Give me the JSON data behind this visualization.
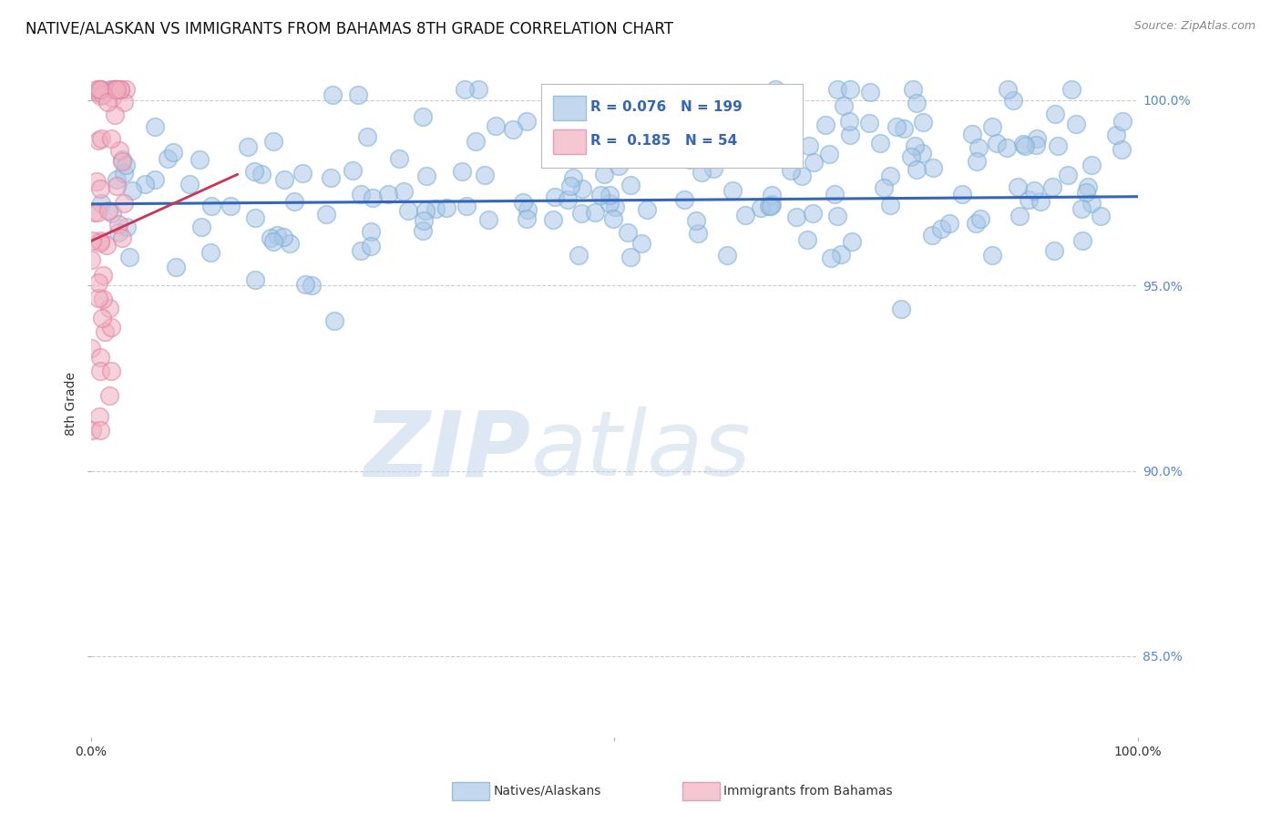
{
  "title": "NATIVE/ALASKAN VS IMMIGRANTS FROM BAHAMAS 8TH GRADE CORRELATION CHART",
  "source_text": "Source: ZipAtlas.com",
  "ylabel": "8th Grade",
  "xlim": [
    0.0,
    1.0
  ],
  "ylim": [
    0.828,
    1.008
  ],
  "yticks": [
    0.85,
    0.9,
    0.95,
    1.0
  ],
  "ytick_labels": [
    "85.0%",
    "90.0%",
    "95.0%",
    "100.0%"
  ],
  "xticks": [
    0.0,
    0.5,
    1.0
  ],
  "xtick_labels": [
    "0.0%",
    "",
    "100.0%"
  ],
  "blue_R": 0.076,
  "blue_N": 199,
  "pink_R": 0.185,
  "pink_N": 54,
  "blue_color": "#aac8e8",
  "blue_edge_color": "#7aadd4",
  "pink_color": "#f0b0c0",
  "pink_edge_color": "#e080a0",
  "blue_line_color": "#3366bb",
  "pink_line_color": "#cc3355",
  "legend_label_blue": "Natives/Alaskans",
  "legend_label_pink": "Immigrants from Bahamas",
  "watermark_zip": "ZIP",
  "watermark_atlas": "atlas",
  "background_color": "#ffffff",
  "grid_color": "#cccccc",
  "title_fontsize": 12,
  "source_fontsize": 9,
  "axis_label_fontsize": 10,
  "tick_fontsize": 10,
  "right_tick_color": "#5588cc",
  "legend_stat_color": "#3366bb",
  "legend_pink_stat_color": "#cc3355"
}
